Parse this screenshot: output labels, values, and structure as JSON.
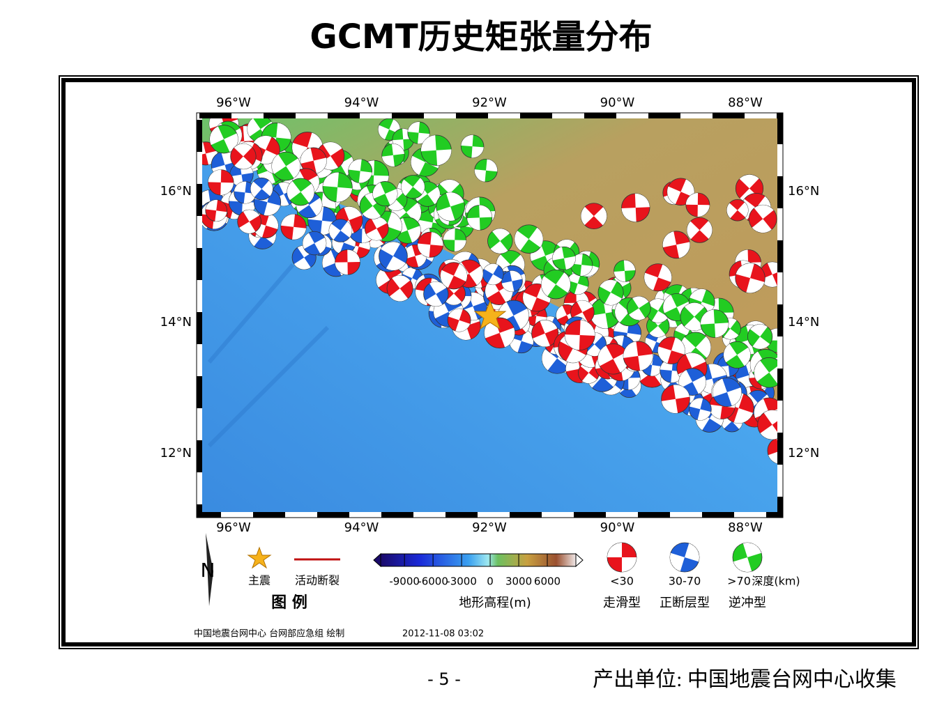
{
  "title": "GCMT历史矩张量分布",
  "map": {
    "top_axis_labels": [
      "96°W",
      "94°W",
      "92°W",
      "90°W",
      "88°W"
    ],
    "bottom_axis_labels": [
      "96°W",
      "94°W",
      "92°W",
      "90°W",
      "88°W"
    ],
    "left_axis_labels": [
      "16°N",
      "14°N",
      "12°N"
    ],
    "right_axis_labels": [
      "16°N",
      "14°N",
      "12°N"
    ]
  },
  "legend": {
    "north": "N",
    "mainshock": "主震",
    "fault": "活动断裂",
    "legend_title": "图 例",
    "elevation": {
      "range": [
        -11500,
        9000
      ],
      "ticks": [
        -9000,
        -6000,
        -3000,
        0,
        3000,
        6000
      ],
      "title": "地形高程(m)"
    },
    "mechanisms": [
      {
        "depth": "<30",
        "type": "走滑型",
        "color": "#e8141c"
      },
      {
        "depth": "30-70",
        "type": "正断层型",
        "color": "#1e5fd8"
      },
      {
        "depth": ">70",
        "type": "逆冲型",
        "color": "#22cc22"
      }
    ],
    "depth_unit": "深度(km)"
  },
  "footer": {
    "credit": "中国地震台网中心 台网部应急组 绘制",
    "date": "2012-11-08 03:02"
  },
  "page_number": "- 5 -",
  "producer": "产出单位: 中国地震台网中心收集"
}
